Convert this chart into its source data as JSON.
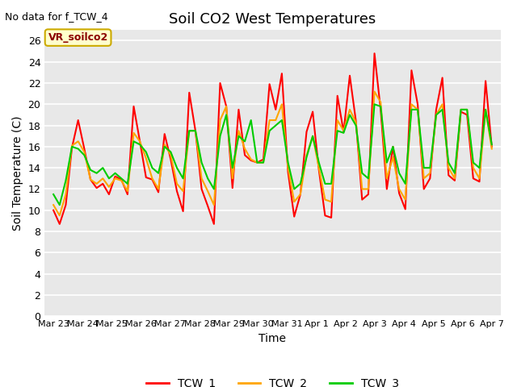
{
  "title": "Soil CO2 West Temperatures",
  "no_data_label": "No data for f_TCW_4",
  "vr_label": "VR_soilco2",
  "xlabel": "Time",
  "ylabel": "Soil Temperature (C)",
  "ylim": [
    0,
    27
  ],
  "yticks": [
    0,
    2,
    4,
    6,
    8,
    10,
    12,
    14,
    16,
    18,
    20,
    22,
    24,
    26
  ],
  "line_colors": {
    "TCW_1": "#ff0000",
    "TCW_2": "#ffa500",
    "TCW_3": "#00cc00"
  },
  "line_width": 1.5,
  "fig_bg_color": "#ffffff",
  "plot_bg_color": "#e8e8e8",
  "grid_color": "#ffffff",
  "x_tick_labels": [
    "Mar 23",
    "Mar 24",
    "Mar 25",
    "Mar 26",
    "Mar 27",
    "Mar 28",
    "Mar 29",
    "Mar 30",
    "Mar 31",
    "Apr 1",
    "Apr 2",
    "Apr 3",
    "Apr 4",
    "Apr 5",
    "Apr 6",
    "Apr 7"
  ],
  "n_days": 16,
  "TCW_1": [
    10.0,
    8.7,
    10.5,
    15.9,
    18.5,
    15.8,
    12.9,
    12.1,
    12.5,
    11.5,
    13.2,
    12.9,
    11.5,
    19.8,
    16.5,
    13.1,
    12.9,
    11.7,
    17.2,
    14.8,
    11.8,
    9.9,
    21.1,
    17.5,
    12.0,
    10.4,
    8.7,
    22.0,
    19.8,
    12.1,
    19.5,
    15.2,
    14.7,
    14.5,
    14.8,
    21.9,
    19.5,
    22.9,
    13.6,
    9.4,
    11.5,
    17.4,
    19.3,
    13.8,
    9.5,
    9.3,
    20.8,
    17.4,
    22.7,
    18.4,
    11.0,
    11.5,
    24.8,
    19.5,
    12.0,
    16.0,
    11.6,
    10.1,
    23.2,
    20.0,
    12.0,
    13.0,
    19.5,
    22.5,
    13.3,
    12.8,
    19.3,
    19.0,
    13.0,
    12.7,
    22.2,
    16.0
  ],
  "TCW_2": [
    10.5,
    9.5,
    11.5,
    16.1,
    16.5,
    15.5,
    12.9,
    12.5,
    13.0,
    12.2,
    13.0,
    12.8,
    11.8,
    17.3,
    16.5,
    14.9,
    13.0,
    12.0,
    16.2,
    15.2,
    12.5,
    11.8,
    17.5,
    17.5,
    13.0,
    11.8,
    10.5,
    18.5,
    19.8,
    13.0,
    17.5,
    15.8,
    14.8,
    14.5,
    14.5,
    18.5,
    18.5,
    20.0,
    14.0,
    10.8,
    11.5,
    15.2,
    17.0,
    14.0,
    11.0,
    10.8,
    18.5,
    17.5,
    19.5,
    18.3,
    12.0,
    12.0,
    21.2,
    20.2,
    13.0,
    15.0,
    12.0,
    11.0,
    20.0,
    19.5,
    13.0,
    13.5,
    19.0,
    20.0,
    14.0,
    13.0,
    19.5,
    19.5,
    14.0,
    13.0,
    19.5,
    15.8
  ],
  "TCW_3": [
    11.5,
    10.5,
    12.8,
    16.0,
    15.8,
    15.2,
    13.8,
    13.5,
    14.0,
    13.0,
    13.5,
    13.0,
    12.5,
    16.5,
    16.2,
    15.5,
    14.0,
    13.5,
    16.0,
    15.5,
    14.0,
    13.0,
    17.5,
    17.5,
    14.5,
    13.0,
    12.0,
    17.0,
    19.0,
    14.0,
    17.0,
    16.5,
    18.5,
    14.5,
    14.5,
    17.5,
    18.0,
    18.5,
    14.5,
    12.0,
    12.5,
    15.0,
    17.0,
    14.5,
    12.5,
    12.5,
    17.5,
    17.3,
    19.0,
    18.0,
    13.5,
    13.0,
    20.0,
    19.8,
    14.5,
    16.0,
    13.5,
    12.5,
    19.5,
    19.5,
    14.0,
    14.0,
    19.0,
    19.5,
    14.5,
    13.5,
    19.5,
    19.5,
    14.5,
    14.0,
    19.5,
    16.2
  ]
}
